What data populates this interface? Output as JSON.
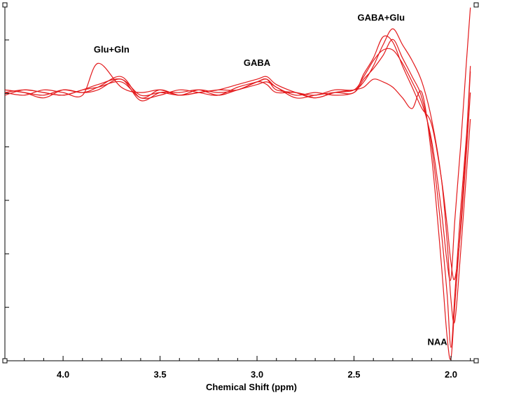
{
  "chart_data": {
    "type": "line",
    "xlabel": "Chemical Shift (ppm)",
    "ylabel": "",
    "x_reversed": true,
    "xlim": [
      4.3,
      1.87
    ],
    "ylim": [
      -5.05,
      1.65
    ],
    "xticks": [
      4.0,
      3.5,
      3.0,
      2.5,
      2.0
    ],
    "xtick_labels": [
      "4.0",
      "3.5",
      "3.0",
      "2.5",
      "2.0"
    ],
    "ytick_count": 7,
    "ytick_labels_visible": false,
    "grid": false,
    "line_color": "#e31a1c",
    "annotations": [
      {
        "text": "Glu+Gln",
        "x": 3.75,
        "y": 0.75
      },
      {
        "text": "GABA",
        "x": 3.0,
        "y": 0.5
      },
      {
        "text": "GABA+Glu",
        "x": 2.36,
        "y": 1.35
      },
      {
        "text": "NAA",
        "x": 2.07,
        "y": -4.75
      }
    ],
    "series": [
      {
        "x": [
          4.3,
          4.2,
          4.1,
          4.0,
          3.9,
          3.82,
          3.7,
          3.6,
          3.5,
          3.4,
          3.3,
          3.2,
          3.1,
          3.0,
          2.95,
          2.9,
          2.8,
          2.7,
          2.6,
          2.5,
          2.45,
          2.4,
          2.35,
          2.3,
          2.25,
          2.2,
          2.15,
          2.1,
          2.05,
          2.02,
          2.0,
          1.98,
          1.95,
          1.92,
          1.9
        ],
        "y": [
          0.05,
          0.0,
          -0.05,
          0.05,
          0.0,
          0.1,
          0.3,
          -0.1,
          0.05,
          -0.05,
          0.0,
          0.05,
          0.15,
          0.25,
          0.3,
          0.15,
          0.0,
          -0.1,
          0.0,
          0.05,
          0.3,
          0.6,
          0.8,
          0.8,
          0.55,
          0.2,
          -0.2,
          -0.9,
          -2.2,
          -3.2,
          -3.5,
          -2.4,
          -1.0,
          0.6,
          1.6
        ]
      },
      {
        "x": [
          4.3,
          4.2,
          4.1,
          4.0,
          3.9,
          3.82,
          3.7,
          3.6,
          3.5,
          3.4,
          3.3,
          3.2,
          3.1,
          3.0,
          2.95,
          2.9,
          2.8,
          2.7,
          2.6,
          2.5,
          2.45,
          2.4,
          2.35,
          2.3,
          2.25,
          2.2,
          2.15,
          2.1,
          2.05,
          2.02,
          2.0,
          1.98,
          1.95,
          1.92,
          1.9
        ],
        "y": [
          -0.05,
          0.05,
          0.0,
          -0.05,
          0.05,
          0.1,
          0.2,
          -0.1,
          -0.05,
          0.05,
          0.0,
          -0.05,
          0.1,
          0.2,
          0.25,
          0.1,
          -0.05,
          0.0,
          -0.05,
          0.0,
          0.25,
          0.45,
          0.7,
          1.0,
          0.65,
          0.3,
          -0.1,
          -1.0,
          -2.6,
          -3.8,
          -4.8,
          -3.8,
          -2.2,
          -0.8,
          0.5
        ]
      },
      {
        "x": [
          4.3,
          4.2,
          4.1,
          4.0,
          3.9,
          3.82,
          3.7,
          3.6,
          3.5,
          3.4,
          3.3,
          3.2,
          3.1,
          3.0,
          2.95,
          2.9,
          2.8,
          2.7,
          2.6,
          2.5,
          2.45,
          2.4,
          2.35,
          2.3,
          2.25,
          2.2,
          2.15,
          2.1,
          2.05,
          2.02,
          2.0,
          1.98,
          1.95,
          1.92,
          1.9
        ],
        "y": [
          0.0,
          -0.05,
          0.05,
          0.0,
          -0.05,
          0.55,
          0.1,
          0.0,
          0.05,
          -0.05,
          0.05,
          0.0,
          0.05,
          0.2,
          0.25,
          0.05,
          0.0,
          -0.05,
          0.05,
          0.05,
          0.2,
          0.5,
          0.9,
          1.2,
          0.9,
          0.6,
          0.2,
          -0.5,
          -1.6,
          -2.8,
          -3.9,
          -4.3,
          -3.0,
          -1.5,
          -0.5
        ]
      },
      {
        "x": [
          4.3,
          4.2,
          4.1,
          4.0,
          3.9,
          3.82,
          3.7,
          3.6,
          3.5,
          3.4,
          3.3,
          3.2,
          3.1,
          3.0,
          2.95,
          2.9,
          2.8,
          2.7,
          2.6,
          2.5,
          2.45,
          2.4,
          2.35,
          2.3,
          2.25,
          2.2,
          2.15,
          2.1,
          2.05,
          2.02,
          2.0,
          1.98,
          1.95,
          1.92,
          1.9
        ],
        "y": [
          0.05,
          0.0,
          -0.1,
          0.05,
          0.0,
          0.05,
          0.25,
          -0.15,
          0.0,
          0.0,
          0.05,
          -0.05,
          0.05,
          0.15,
          0.2,
          0.1,
          -0.1,
          -0.05,
          0.0,
          0.0,
          0.35,
          0.65,
          1.05,
          0.95,
          0.5,
          0.1,
          -0.3,
          -0.6,
          -1.6,
          -2.5,
          -3.2,
          -3.5,
          -2.6,
          -1.1,
          0.0
        ]
      },
      {
        "x": [
          4.3,
          4.2,
          4.1,
          4.0,
          3.9,
          3.82,
          3.7,
          3.6,
          3.5,
          3.4,
          3.3,
          3.2,
          3.1,
          3.0,
          2.95,
          2.9,
          2.8,
          2.7,
          2.6,
          2.5,
          2.45,
          2.4,
          2.35,
          2.3,
          2.25,
          2.2,
          2.15,
          2.1,
          2.05,
          2.02,
          2.0,
          1.98,
          1.95,
          1.92,
          1.9
        ],
        "y": [
          0.0,
          0.05,
          0.0,
          -0.05,
          0.05,
          0.15,
          0.25,
          -0.05,
          0.0,
          -0.05,
          0.0,
          0.05,
          0.05,
          0.2,
          0.15,
          0.0,
          0.0,
          -0.1,
          0.0,
          0.05,
          0.1,
          0.25,
          0.2,
          0.1,
          -0.1,
          -0.3,
          0.0,
          -1.2,
          -3.2,
          -4.6,
          -5.0,
          -4.0,
          -2.5,
          -0.9,
          0.4
        ]
      }
    ]
  }
}
